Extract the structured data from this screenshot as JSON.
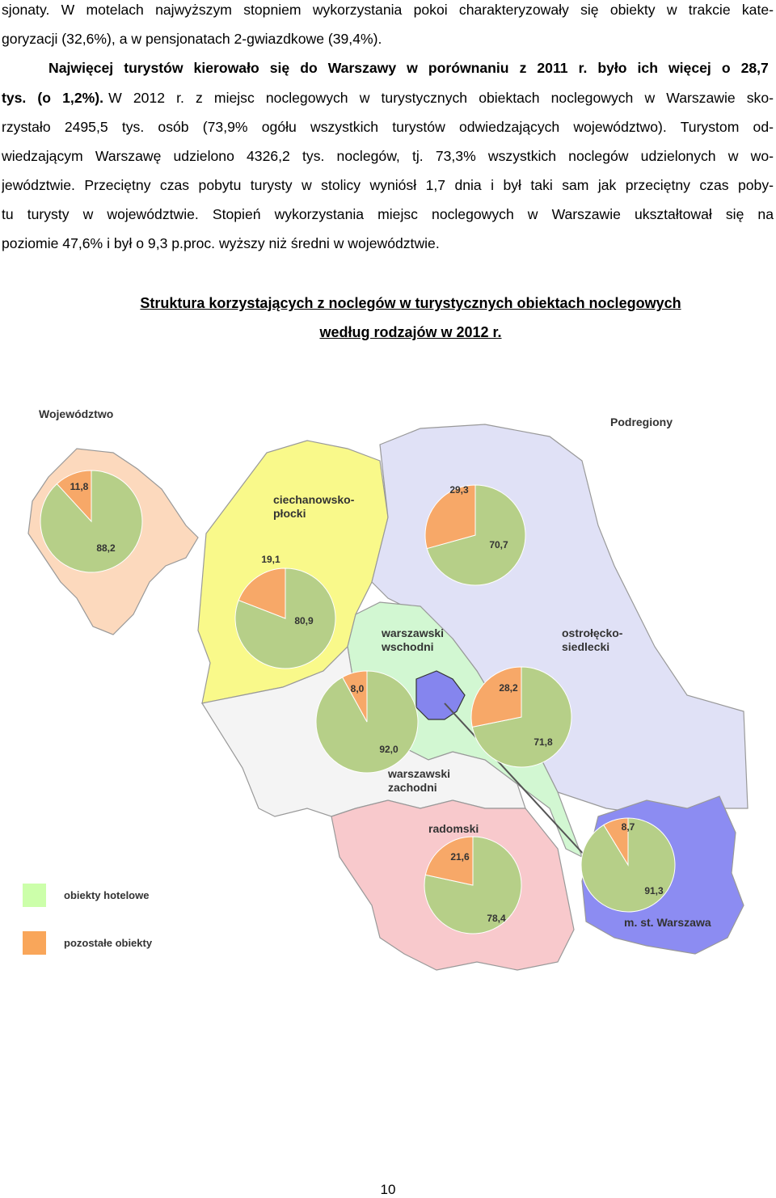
{
  "paragraph": {
    "lines": [
      {
        "regular": "sjonaty. W motelach najwyższym stopniem wykorzystania pokoi charakteryzowały się obiekty w trakcie kate-"
      },
      {
        "regular": "goryzacji (32,6%), a w pensjonatach 2-gwiazdkowe (39,4%)."
      },
      {
        "bold": "Najwięcej turystów kierowało się do Warszawy w porównaniu z 2011 r. było ich więcej o 28,7"
      },
      {
        "bold": "tys. (o 1,2%).",
        "regular": "W 2012 r. z miejsc noclegowych w turystycznych obiektach noclegowych w Warszawie sko-"
      },
      {
        "regular": "rzystało 2495,5 tys. osób (73,9% ogółu wszystkich turystów odwiedzających województwo). Turystom od-"
      },
      {
        "regular": "wiedzającym Warszawę udzielono 4326,2 tys. noclegów, tj. 73,3% wszystkich noclegów udzielonych w wo-"
      },
      {
        "regular": "jewództwie. Przeciętny czas pobytu turysty w stolicy wyniósł 1,7 dnia i był taki sam jak przeciętny czas poby-"
      },
      {
        "regular": "tu turysty w województwie. Stopień wykorzystania miejsc noclegowych w Warszawie ukształtował się na"
      },
      {
        "regular": "poziomie 47,6% i był o 9,3 p.proc. wyższy niż średni w województwie."
      }
    ]
  },
  "caption": {
    "lines": [
      "Struktura korzystających z noclegów w turystycznych obiektach noclegowych",
      "według rodzajów  w 2012 r."
    ]
  },
  "map": {
    "voivodeship_label": "Województwo",
    "subregions_label": "Podregiony",
    "pie_colors": [
      "#b6cf88",
      "#f7a868"
    ],
    "voivodeship_pie": {
      "values": [
        88.2,
        11.8
      ],
      "value_labels": [
        "88,2",
        "11,8"
      ]
    },
    "regions": [
      {
        "name_lines": [
          "ciechanowsko-",
          "płocki"
        ],
        "values": [
          80.9,
          19.1
        ],
        "value_labels": [
          "80,9",
          "19,1"
        ]
      },
      {
        "name_lines": [
          "ostrołęcko-",
          "siedlecki"
        ],
        "values": [
          70.7,
          29.3
        ],
        "value_labels": [
          "70,7",
          "29,3"
        ]
      },
      {
        "name_lines": [
          "warszawski",
          "zachodni"
        ],
        "values": [
          92.0,
          8.0
        ],
        "value_labels": [
          "92,0",
          "8,0"
        ]
      },
      {
        "name_lines": [
          "warszawski",
          "wschodni"
        ],
        "values": [
          71.8,
          28.2
        ],
        "value_labels": [
          "71,8",
          "28,2"
        ]
      },
      {
        "name_lines": [
          "radomski"
        ],
        "values": [
          78.4,
          21.6
        ],
        "value_labels": [
          "78,4",
          "21,6"
        ]
      },
      {
        "name_lines": [
          "m. st. Warszawa"
        ],
        "values": [
          91.3,
          8.7
        ],
        "value_labels": [
          "91,3",
          "8,7"
        ]
      }
    ],
    "legend": [
      {
        "label": "obiekty hotelowe",
        "color": "#ccffaa"
      },
      {
        "label": "pozostałe obiekty",
        "color": "#f9a65a"
      }
    ]
  },
  "page_number": "10"
}
